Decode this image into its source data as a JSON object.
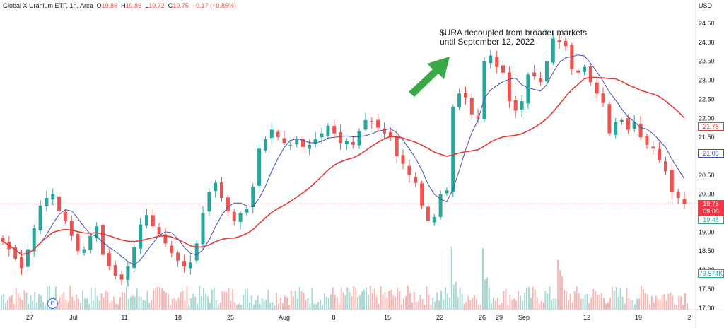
{
  "header": {
    "symbol": "Global X Uranium ETF, 1h, Arca",
    "o_label": "O",
    "o": "19.86",
    "h_label": "H",
    "h": "19.86",
    "l_label": "L",
    "l": "19.72",
    "c_label": "C",
    "c": "19.75",
    "change": "−0.17 (−0.85%)"
  },
  "annotation": {
    "line1": "$URA decoupled from broader markets",
    "line2": "until September 12, 2022"
  },
  "axis": {
    "currency": "USD",
    "ticks": [
      "24.50",
      "24.00",
      "23.50",
      "23.00",
      "22.50",
      "22.00",
      "21.50",
      "21.00",
      "20.50",
      "20.00",
      "19.50",
      "19.00",
      "18.50",
      "18.00",
      "17.50",
      "17.00"
    ],
    "xticks": [
      "27",
      "Jul",
      "11",
      "18",
      "25",
      "Aug",
      "8",
      "15",
      "22",
      "26",
      "29",
      "Sep",
      "12",
      "19",
      "2"
    ]
  },
  "tags": {
    "last_price": "19.75",
    "countdown": "09:08",
    "ma100": "21.78",
    "ma20": "21.05",
    "ma_green": "19.48",
    "volume": "79.574K"
  },
  "badge": "D",
  "colors": {
    "up": "#26a69a",
    "down": "#ef5350",
    "ma_long": "#e53935",
    "ma_short": "#3f51b5",
    "arrow": "#3aa845",
    "volume_up": "#a8d8d2",
    "volume_down": "#f7b6b4"
  },
  "chart_data": {
    "type": "candlestick",
    "title": "Global X Uranium ETF, 1h, Arca",
    "ylabel": "USD",
    "ylim": [
      17.0,
      24.75
    ],
    "xticks": [
      "27",
      "Jul",
      "11",
      "18",
      "25",
      "Aug",
      "8",
      "15",
      "22",
      "26",
      "29",
      "Sep",
      "12",
      "19",
      "2"
    ],
    "series": [
      {
        "name": "price",
        "values": [
          18.75,
          18.55,
          18.3,
          18.05,
          18.55,
          19.1,
          19.7,
          19.9,
          20.0,
          19.55,
          19.3,
          18.9,
          18.5,
          18.55,
          18.9,
          19.15,
          18.4,
          18.1,
          17.85,
          17.75,
          18.1,
          18.6,
          19.2,
          19.45,
          19.15,
          18.95,
          18.7,
          18.45,
          18.25,
          18.1,
          18.2,
          18.7,
          19.5,
          20.05,
          20.3,
          19.9,
          19.55,
          19.3,
          19.5,
          19.6,
          20.2,
          21.2,
          21.45,
          21.7,
          21.5,
          21.35,
          21.3,
          21.45,
          21.25,
          21.3,
          21.45,
          21.6,
          21.8,
          21.6,
          21.35,
          21.4,
          21.3,
          21.65,
          21.95,
          21.9,
          21.75,
          21.6,
          21.5,
          21.0,
          20.8,
          20.5,
          20.3,
          19.7,
          19.3,
          19.4,
          20.0,
          20.1,
          22.3,
          22.65,
          22.55,
          22.1,
          22.0,
          23.5,
          23.65,
          23.35,
          23.2,
          22.45,
          22.2,
          22.45,
          23.15,
          23.1,
          22.95,
          23.5,
          24.1,
          24.0,
          23.9,
          23.3,
          23.2,
          23.35,
          22.95,
          22.65,
          22.4,
          21.6,
          21.9,
          21.95,
          21.7,
          21.9,
          21.5,
          21.3,
          21.2,
          20.9,
          20.6,
          20.05,
          19.9,
          19.75
        ]
      },
      {
        "name": "MA (long, red)",
        "last": 21.78
      },
      {
        "name": "MA (short, blue)",
        "last": 21.05
      },
      {
        "name": "volume",
        "last": "79.574K"
      }
    ]
  }
}
